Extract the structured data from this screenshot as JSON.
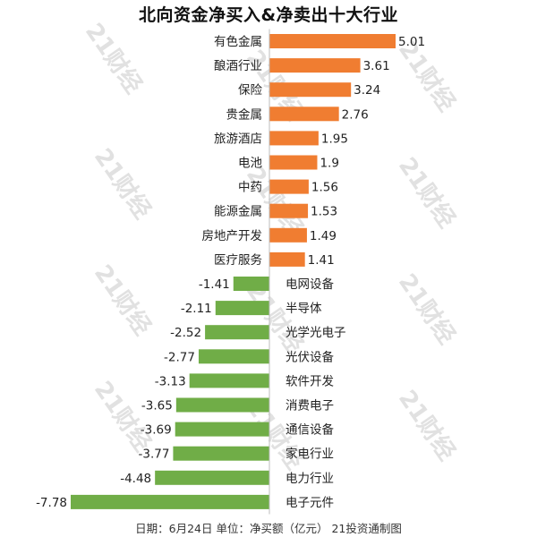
{
  "title": "北向资金净买入&净卖出十大行业",
  "footer": "日期：6月24日 单位：净买额（亿元） 21投资通制图",
  "watermark": "21财经",
  "colors": {
    "positive": "#f07d31",
    "negative": "#70ad47",
    "axis": "#bdbdbd"
  },
  "chart_data": {
    "type": "bar",
    "orientation": "horizontal",
    "categories": [
      "有色金属",
      "酿酒行业",
      "保险",
      "贵金属",
      "旅游酒店",
      "电池",
      "中药",
      "能源金属",
      "房地产开发",
      "医疗服务",
      "电网设备",
      "半导体",
      "光学光电子",
      "光伏设备",
      "软件开发",
      "消费电子",
      "通信设备",
      "家电行业",
      "电力行业",
      "电子元件"
    ],
    "values": [
      5.01,
      3.61,
      3.24,
      2.76,
      1.95,
      1.9,
      1.56,
      1.53,
      1.49,
      1.41,
      -1.41,
      -2.11,
      -2.52,
      -2.77,
      -3.13,
      -3.65,
      -3.69,
      -3.77,
      -4.48,
      -7.78
    ],
    "value_labels": [
      "5.01",
      "3.61",
      "3.24",
      "2.76",
      "1.95",
      "1.9",
      "1.56",
      "1.53",
      "1.49",
      "1.41",
      "-1.41",
      "-2.11",
      "-2.52",
      "-2.77",
      "-3.13",
      "-3.65",
      "-3.69",
      "-3.77",
      "-4.48",
      "-7.78"
    ],
    "xlim": [
      -7.78,
      5.01
    ],
    "grid": false,
    "legend": "none"
  }
}
